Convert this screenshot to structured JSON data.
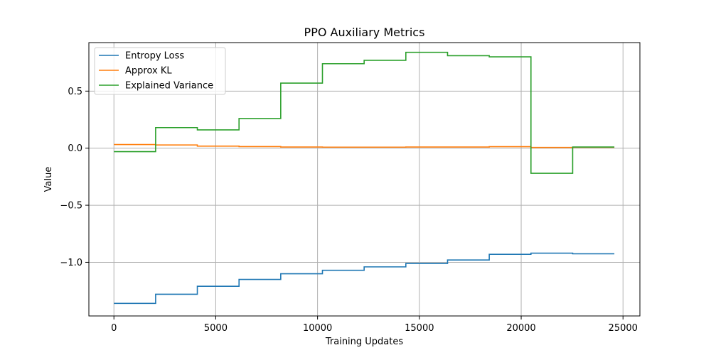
{
  "chart_data": {
    "type": "line",
    "step": "post",
    "title": "PPO Auxiliary Metrics",
    "xlabel": "Training Updates",
    "ylabel": "Value",
    "xlim": [
      -1230,
      25830
    ],
    "ylim": [
      -1.47,
      0.925
    ],
    "xticks": [
      0,
      5000,
      10000,
      15000,
      20000,
      25000
    ],
    "xtick_labels": [
      "0",
      "5000",
      "10000",
      "15000",
      "20000",
      "25000"
    ],
    "yticks": [
      -1.0,
      -0.5,
      0.0,
      0.5
    ],
    "ytick_labels": [
      "−1.0",
      "−0.5",
      "0.0",
      "0.5"
    ],
    "grid": true,
    "legend_position": "top-left",
    "x": [
      0,
      2048,
      4096,
      6144,
      8192,
      10240,
      12288,
      14336,
      16384,
      18432,
      20480,
      22528,
      24576
    ],
    "series": [
      {
        "name": "Entropy Loss",
        "color": "#1f77b4",
        "values": [
          -1.36,
          -1.28,
          -1.21,
          -1.15,
          -1.1,
          -1.07,
          -1.04,
          -1.01,
          -0.98,
          -0.93,
          -0.92,
          -0.925,
          -0.925
        ]
      },
      {
        "name": "Approx KL",
        "color": "#ff7f0e",
        "values": [
          0.032,
          0.028,
          0.018,
          0.014,
          0.01,
          0.009,
          0.009,
          0.01,
          0.01,
          0.013,
          0.006,
          0.008,
          0.008
        ]
      },
      {
        "name": "Explained Variance",
        "color": "#2ca02c",
        "values": [
          -0.03,
          0.18,
          0.16,
          0.26,
          0.57,
          0.74,
          0.77,
          0.84,
          0.81,
          0.8,
          -0.22,
          0.01,
          0.01
        ]
      }
    ]
  }
}
